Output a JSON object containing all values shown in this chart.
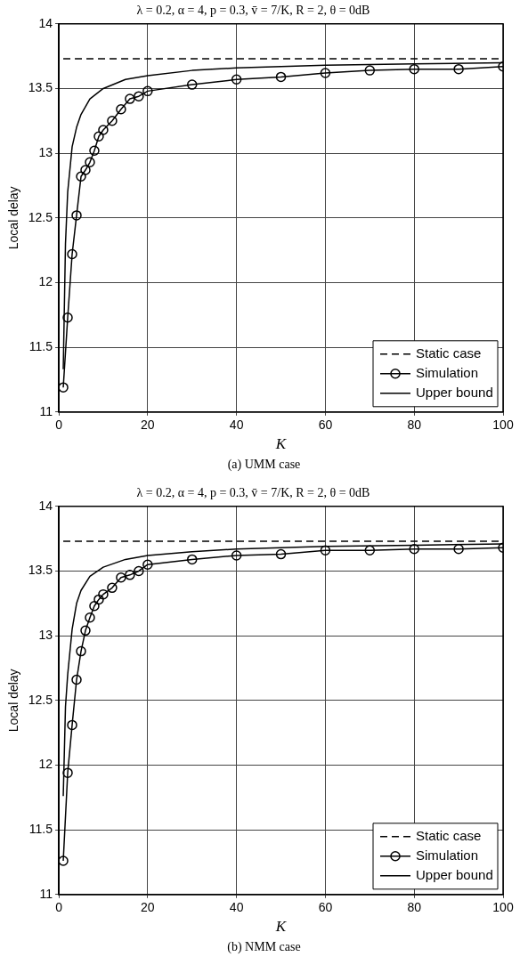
{
  "chart_data": [
    {
      "type": "line",
      "title": "λ = 0.2, α = 4, p = 0.3, v̄ = 7/K, R = 2, θ = 0dB",
      "xlabel": "K",
      "ylabel": "Local delay",
      "xlim": [
        0,
        100
      ],
      "xticks": [
        0,
        20,
        40,
        60,
        80,
        100
      ],
      "ylim": [
        11,
        14
      ],
      "yticks": [
        11,
        11.5,
        12,
        12.5,
        13,
        13.5,
        14
      ],
      "grid": true,
      "legend": "bottom right",
      "annotations": [
        "(a) UMM case"
      ],
      "series": [
        {
          "name": "Static case",
          "color": "#000000",
          "line_style": "dashed",
          "marker": "none",
          "x": [
            1,
            100
          ],
          "values": [
            13.73,
            13.73
          ]
        },
        {
          "name": "Simulation",
          "color": "#000000",
          "line_style": "solid",
          "marker": "circle",
          "x": [
            1,
            2,
            3,
            4,
            5,
            6,
            7,
            8,
            9,
            10,
            12,
            14,
            16,
            18,
            20,
            30,
            40,
            50,
            60,
            70,
            80,
            90,
            100
          ],
          "values": [
            11.19,
            11.73,
            12.22,
            12.52,
            12.82,
            12.87,
            12.93,
            13.02,
            13.13,
            13.18,
            13.25,
            13.34,
            13.42,
            13.44,
            13.48,
            13.53,
            13.57,
            13.59,
            13.62,
            13.64,
            13.65,
            13.65,
            13.67
          ]
        },
        {
          "name": "Upper bound",
          "color": "#000000",
          "line_style": "solid",
          "marker": "none",
          "x": [
            1,
            1.5,
            2,
            3,
            4,
            5,
            7,
            10,
            15,
            20,
            30,
            40,
            60,
            80,
            100
          ],
          "values": [
            11.33,
            12.3,
            12.7,
            13.05,
            13.2,
            13.3,
            13.42,
            13.5,
            13.57,
            13.6,
            13.64,
            13.66,
            13.68,
            13.69,
            13.7
          ]
        }
      ]
    },
    {
      "type": "line",
      "title": "λ = 0.2, α = 4, p = 0.3, v̄ = 7/K, R = 2, θ = 0dB",
      "xlabel": "K",
      "ylabel": "Local delay",
      "xlim": [
        0,
        100
      ],
      "xticks": [
        0,
        20,
        40,
        60,
        80,
        100
      ],
      "ylim": [
        11,
        14
      ],
      "yticks": [
        11,
        11.5,
        12,
        12.5,
        13,
        13.5,
        14
      ],
      "grid": true,
      "legend": "bottom right",
      "annotations": [
        "(b) NMM case"
      ],
      "series": [
        {
          "name": "Static case",
          "color": "#000000",
          "line_style": "dashed",
          "marker": "none",
          "x": [
            1,
            100
          ],
          "values": [
            13.73,
            13.73
          ]
        },
        {
          "name": "Simulation",
          "color": "#000000",
          "line_style": "solid",
          "marker": "circle",
          "x": [
            1,
            2,
            3,
            4,
            5,
            6,
            7,
            8,
            9,
            10,
            12,
            14,
            16,
            18,
            20,
            30,
            40,
            50,
            60,
            70,
            80,
            90,
            100
          ],
          "values": [
            11.26,
            11.94,
            12.31,
            12.66,
            12.88,
            13.04,
            13.14,
            13.23,
            13.28,
            13.32,
            13.37,
            13.45,
            13.47,
            13.5,
            13.55,
            13.59,
            13.62,
            13.63,
            13.66,
            13.66,
            13.67,
            13.67,
            13.68
          ]
        },
        {
          "name": "Upper bound",
          "color": "#000000",
          "line_style": "solid",
          "marker": "none",
          "x": [
            1,
            1.5,
            2,
            3,
            4,
            5,
            7,
            10,
            15,
            20,
            30,
            40,
            60,
            80,
            100
          ],
          "values": [
            11.76,
            12.45,
            12.7,
            13.05,
            13.25,
            13.35,
            13.46,
            13.53,
            13.59,
            13.62,
            13.65,
            13.67,
            13.69,
            13.7,
            13.71
          ]
        }
      ]
    }
  ]
}
